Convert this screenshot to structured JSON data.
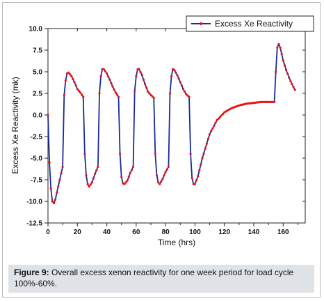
{
  "figure": {
    "caption_label": "Figure 9:",
    "caption_text": " Overall excess xenon reactivity for one week period for load cycle 100%-60%."
  },
  "colors": {
    "line": "#1a2a9a",
    "markers": "#ee1111"
  },
  "chart_data": {
    "type": "line",
    "title": "",
    "xlabel": "Time  (hrs)",
    "ylabel": "Excess Xe Reactivity  (mk)",
    "xlim": [
      0,
      175
    ],
    "ylim": [
      -12.5,
      10.0
    ],
    "xticks": [
      0,
      20,
      40,
      60,
      80,
      100,
      120,
      140,
      160
    ],
    "yticks": [
      -12.5,
      -10.0,
      -7.5,
      -5.0,
      -2.5,
      0.0,
      2.5,
      5.0,
      7.5,
      10.0
    ],
    "xtick_labels": [
      "0",
      "20",
      "40",
      "60",
      "80",
      "100",
      "120",
      "140",
      "160"
    ],
    "ytick_labels": [
      "-12.5",
      "-10.0",
      "-7.5",
      "-5.0",
      "-2.5",
      "0.0",
      "2.5",
      "5.0",
      "7.5",
      "10.0"
    ],
    "grid": false,
    "legend_position": "top-right",
    "series": [
      {
        "name": "Excess Xe Reactivity",
        "style": "line-with-markers",
        "x": [
          0,
          1,
          2,
          3,
          4,
          5,
          6,
          8,
          10,
          11,
          12,
          13,
          14,
          16,
          18,
          20,
          22,
          24,
          25,
          26,
          27,
          28,
          30,
          32,
          34,
          35,
          36,
          37,
          38,
          40,
          42,
          44,
          46,
          48,
          49,
          50,
          51,
          52,
          54,
          56,
          58,
          59,
          60,
          61,
          62,
          64,
          66,
          68,
          70,
          72,
          73,
          74,
          75,
          76,
          78,
          80,
          82,
          83,
          84,
          85,
          86,
          88,
          90,
          92,
          94,
          96,
          97,
          98,
          99,
          100,
          102,
          105,
          110,
          115,
          120,
          125,
          130,
          135,
          140,
          145,
          150,
          154,
          155,
          156,
          157,
          158,
          160,
          162,
          165,
          168
        ],
        "y": [
          0.0,
          -5.5,
          -8.5,
          -10.0,
          -10.2,
          -9.8,
          -9.0,
          -7.5,
          -6.0,
          2.3,
          4.0,
          4.8,
          4.9,
          4.5,
          3.8,
          3.0,
          2.6,
          2.1,
          -4.5,
          -7.0,
          -8.0,
          -8.3,
          -7.8,
          -6.8,
          -6.0,
          2.5,
          4.5,
          5.3,
          5.3,
          4.8,
          4.1,
          3.3,
          2.6,
          2.1,
          -4.5,
          -7.2,
          -7.9,
          -8.0,
          -7.6,
          -6.7,
          -6.0,
          2.8,
          4.5,
          5.3,
          5.3,
          4.6,
          3.6,
          2.7,
          2.3,
          2.0,
          -4.5,
          -7.0,
          -7.8,
          -8.0,
          -7.4,
          -6.6,
          -6.0,
          2.5,
          4.5,
          5.3,
          5.2,
          4.6,
          3.8,
          3.0,
          2.4,
          2.1,
          -4.5,
          -7.3,
          -8.0,
          -8.0,
          -7.1,
          -5.0,
          -2.2,
          -0.6,
          0.3,
          0.8,
          1.1,
          1.3,
          1.4,
          1.5,
          1.5,
          1.5,
          5.0,
          7.8,
          8.2,
          7.8,
          6.3,
          5.2,
          3.9,
          2.9
        ]
      }
    ]
  }
}
